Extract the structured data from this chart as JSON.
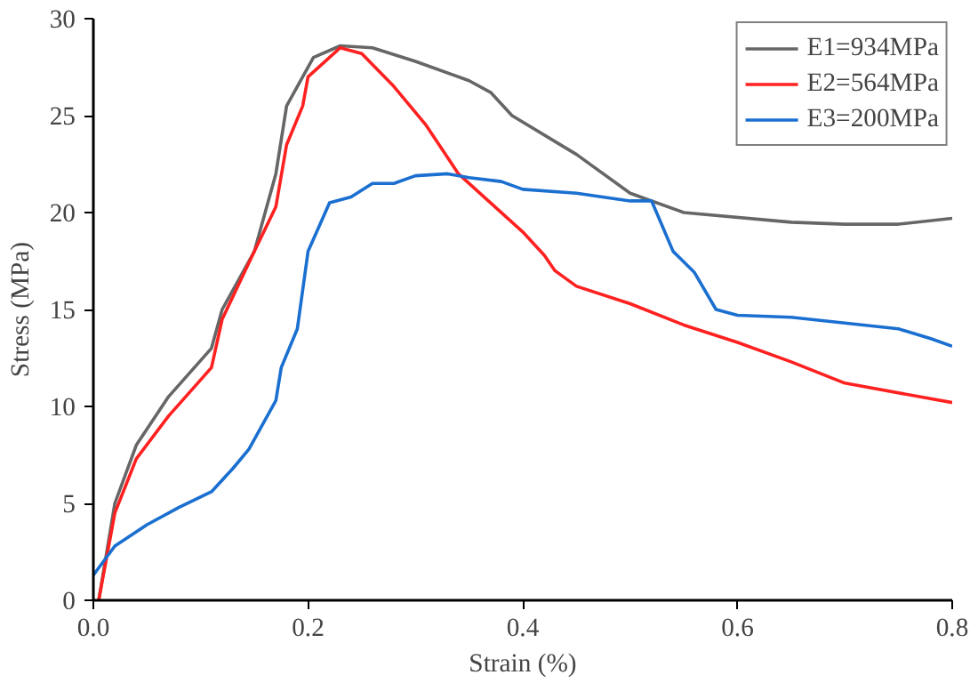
{
  "chart_data": {
    "type": "line",
    "xlabel": "Strain (%)",
    "ylabel": "Stress (MPa)",
    "xlim": [
      0,
      0.8
    ],
    "xticks": [
      {
        "value": 0,
        "label": "0.0"
      },
      0.2,
      0.4,
      0.6,
      0.8
    ],
    "ylim": [
      0,
      30
    ],
    "yticks": [
      0,
      5,
      10,
      15,
      20,
      25,
      30
    ],
    "grid": false,
    "legend": "top right",
    "line_style": "solid",
    "series": [
      {
        "name": "E1=934MPa",
        "color": "#666666",
        "x": [
          0.005,
          0.02,
          0.04,
          0.07,
          0.11,
          0.12,
          0.15,
          0.17,
          0.18,
          0.195,
          0.205,
          0.23,
          0.26,
          0.3,
          0.35,
          0.37,
          0.39,
          0.45,
          0.5,
          0.55,
          0.65,
          0.7,
          0.75,
          0.8
        ],
        "values": [
          0,
          5,
          8,
          10.5,
          13,
          15,
          18,
          22,
          25.5,
          27,
          28,
          28.6,
          28.5,
          27.8,
          26.8,
          26.2,
          25,
          23,
          21,
          20,
          19.5,
          19.4,
          19.4,
          19.7
        ]
      },
      {
        "name": "E2=564MPa",
        "color": "#ff2020",
        "x": [
          0.005,
          0.02,
          0.04,
          0.07,
          0.11,
          0.12,
          0.15,
          0.17,
          0.18,
          0.195,
          0.2,
          0.23,
          0.25,
          0.28,
          0.31,
          0.34,
          0.37,
          0.4,
          0.42,
          0.43,
          0.45,
          0.5,
          0.55,
          0.6,
          0.65,
          0.7,
          0.8
        ],
        "values": [
          0,
          4.5,
          7.3,
          9.5,
          12,
          14.5,
          18,
          20.3,
          23.5,
          25.5,
          27,
          28.5,
          28.2,
          26.5,
          24.5,
          22,
          20.5,
          19,
          17.8,
          17,
          16.2,
          15.3,
          14.2,
          13.3,
          12.3,
          11.2,
          10.2
        ]
      },
      {
        "name": "E3=200MPa",
        "color": "#1a6fd0",
        "x": [
          0,
          0.02,
          0.05,
          0.08,
          0.11,
          0.13,
          0.145,
          0.17,
          0.175,
          0.19,
          0.2,
          0.22,
          0.24,
          0.26,
          0.28,
          0.3,
          0.33,
          0.35,
          0.38,
          0.4,
          0.45,
          0.5,
          0.52,
          0.54,
          0.56,
          0.58,
          0.6,
          0.65,
          0.7,
          0.75,
          0.78,
          0.8
        ],
        "values": [
          1.3,
          2.8,
          3.9,
          4.8,
          5.6,
          6.8,
          7.8,
          10.3,
          12,
          14,
          18,
          20.5,
          20.8,
          21.5,
          21.5,
          21.9,
          22,
          21.8,
          21.6,
          21.2,
          21,
          20.6,
          20.6,
          18,
          16.9,
          15,
          14.7,
          14.6,
          14.3,
          14,
          13.5,
          13.1
        ]
      }
    ]
  }
}
